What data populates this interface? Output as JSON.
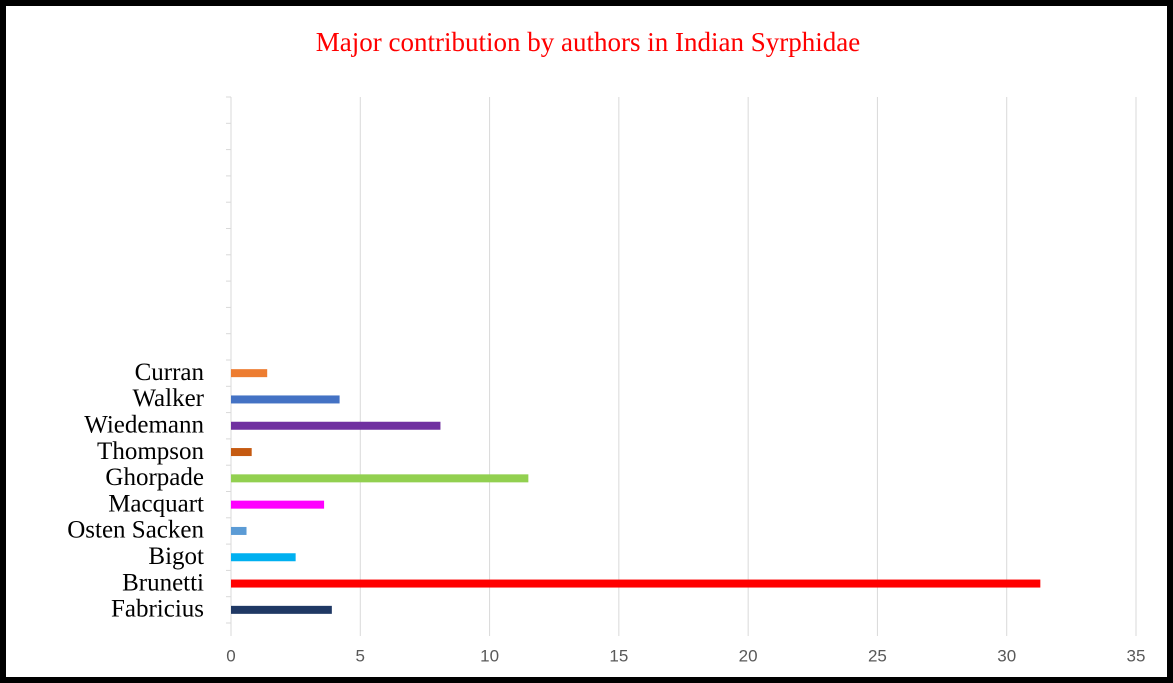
{
  "chart_data": {
    "type": "bar",
    "orientation": "horizontal",
    "title": "Major contribution by authors  in Indian Syrphidae",
    "categories": [
      "Fabricius",
      "Brunetti",
      "Bigot",
      "Osten Sacken",
      "Macquart",
      "Ghorpade",
      "Thompson",
      "Wiedemann",
      "Walker",
      "Curran",
      null,
      null,
      null,
      null,
      null,
      null,
      null,
      null,
      null,
      null
    ],
    "values": [
      3.9,
      31.3,
      2.5,
      0.6,
      3.6,
      11.5,
      0.8,
      8.1,
      4.2,
      1.4,
      null,
      null,
      null,
      null,
      null,
      null,
      null,
      null,
      null,
      null
    ],
    "colors": [
      "#1f3864",
      "#ff0000",
      "#00b0f0",
      "#5b9bd5",
      "#ff00ff",
      "#92d050",
      "#c55a11",
      "#7030a0",
      "#4472c4",
      "#ed7d31",
      null,
      null,
      null,
      null,
      null,
      null,
      null,
      null,
      null,
      null
    ],
    "xlim": [
      0,
      35
    ],
    "xticks": [
      0,
      5,
      10,
      15,
      20,
      25,
      30,
      35
    ],
    "grid": true
  }
}
